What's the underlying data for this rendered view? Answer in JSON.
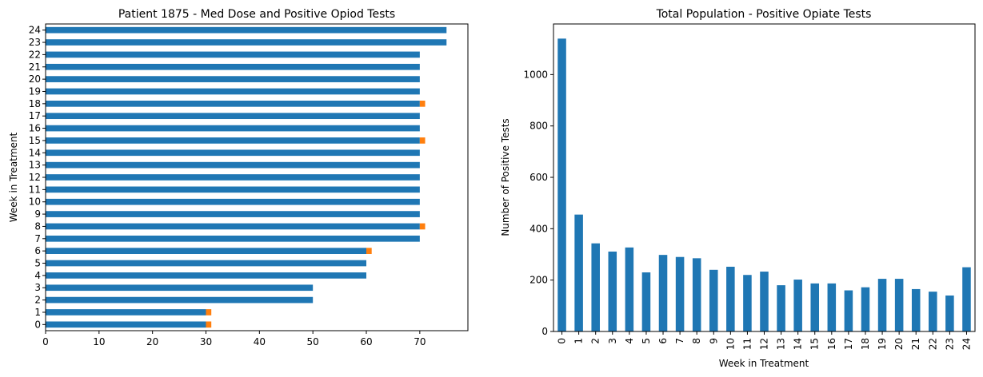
{
  "colors": {
    "dose": "#1f77b4",
    "positive": "#ff7f0e",
    "axis": "#000000"
  },
  "chart_data": [
    {
      "type": "bar",
      "orientation": "horizontal",
      "stacked": true,
      "title": "Patient 1875 - Med Dose and Positive Opiod Tests",
      "xlabel": "",
      "ylabel": "Week in Treatment",
      "xlim": [
        0,
        79
      ],
      "xticks": [
        0,
        10,
        20,
        30,
        40,
        50,
        60,
        70
      ],
      "categories": [
        "0",
        "1",
        "2",
        "3",
        "4",
        "5",
        "6",
        "7",
        "8",
        "9",
        "10",
        "11",
        "12",
        "13",
        "14",
        "15",
        "16",
        "17",
        "18",
        "19",
        "20",
        "21",
        "22",
        "23",
        "24"
      ],
      "series": [
        {
          "values": [
            30,
            30,
            50,
            50,
            60,
            60,
            60,
            70,
            70,
            70,
            70,
            70,
            70,
            70,
            70,
            70,
            70,
            70,
            70,
            70,
            70,
            70,
            70,
            75,
            75
          ]
        },
        {
          "values": [
            1,
            1,
            0,
            0,
            0,
            0,
            1,
            0,
            1,
            0,
            0,
            0,
            0,
            0,
            0,
            1,
            0,
            0,
            1,
            0,
            0,
            0,
            0,
            0,
            0
          ]
        }
      ],
      "grid": false,
      "legend": "none"
    },
    {
      "type": "bar",
      "orientation": "vertical",
      "title": "Total Population - Positive Opiate Tests",
      "xlabel": "Week in Treatment",
      "ylabel": "Number of Positive Tests",
      "ylim": [
        0,
        1197
      ],
      "yticks": [
        0,
        200,
        400,
        600,
        800,
        1000
      ],
      "categories": [
        "0",
        "1",
        "2",
        "3",
        "4",
        "5",
        "6",
        "7",
        "8",
        "9",
        "10",
        "11",
        "12",
        "13",
        "14",
        "15",
        "16",
        "17",
        "18",
        "19",
        "20",
        "21",
        "22",
        "23",
        "24"
      ],
      "values": [
        1140,
        455,
        343,
        311,
        327,
        230,
        298,
        290,
        285,
        240,
        252,
        220,
        233,
        180,
        202,
        187,
        187,
        160,
        172,
        205,
        205,
        165,
        155,
        140,
        250
      ],
      "grid": false,
      "legend": "none"
    }
  ]
}
